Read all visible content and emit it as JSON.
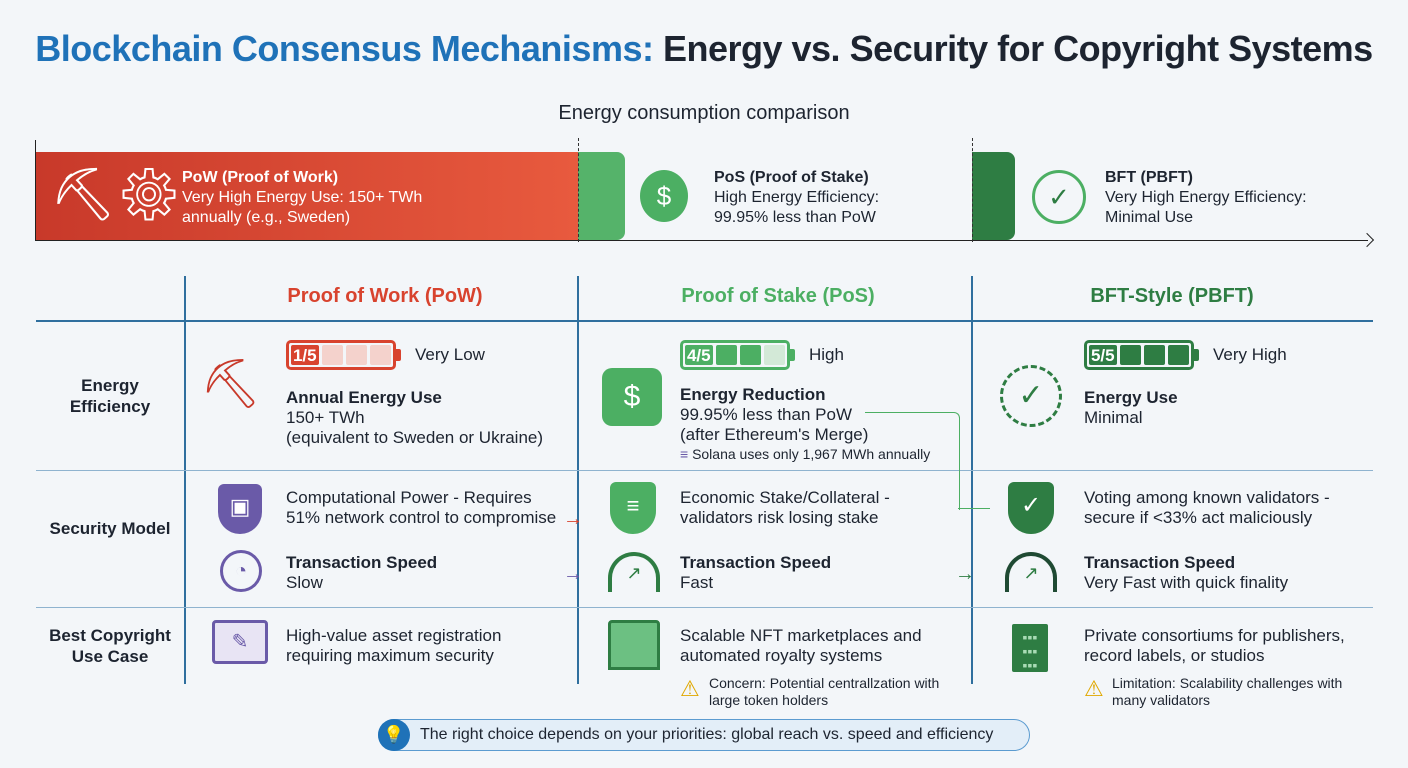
{
  "title": {
    "part1": "Blockchain Consensus Mechanisms:",
    "part2": " Energy vs. Security for Copyright Systems"
  },
  "subtitle": "Energy consumption comparison",
  "energy_bar": [
    {
      "name": "PoW (Proof of Work)",
      "line1": "Very High Energy Use: 150+ TWh",
      "line2": "annually (e.g., Sweden)",
      "color": "#d8432e"
    },
    {
      "name": "PoS (Proof of Stake)",
      "line1": "High Energy Efficiency:",
      "line2": "99.95% less than PoW",
      "color": "#4caf63"
    },
    {
      "name": "BFT (PBFT)",
      "line1": "Very High Energy Efficiency:",
      "line2": "Minimal Use",
      "color": "#2e7d43"
    }
  ],
  "columns": [
    "Proof of Work (PoW)",
    "Proof of Stake (PoS)",
    "BFT-Style (PBFT)"
  ],
  "rows": [
    "Energy Efficiency",
    "Security Model",
    "Best Copyright Use Case"
  ],
  "efficiency": [
    {
      "rating": "1/5",
      "rating_value": 1,
      "level": "Very Low",
      "heading": "Annual Energy Use",
      "l1": "150+ TWh",
      "l2": "(equivalent to Sweden or Ukraine)"
    },
    {
      "rating": "4/5",
      "rating_value": 4,
      "level": "High",
      "heading": "Energy Reduction",
      "l1": "99.95% less than PoW",
      "l2": "(after Ethereum's Merge)",
      "note": "Solana uses only 1,967 MWh annually"
    },
    {
      "rating": "5/5",
      "rating_value": 5,
      "level": "Very High",
      "heading": "Energy Use",
      "l1": "Minimal"
    }
  ],
  "security": [
    {
      "l1": "Computational Power - Requires",
      "l2": "51% network control to compromise",
      "speed_label": "Transaction Speed",
      "speed": "Slow"
    },
    {
      "l1": "Economic Stake/Collateral -",
      "l2": "validators risk losing stake",
      "speed_label": "Transaction Speed",
      "speed": "Fast"
    },
    {
      "l1": "Voting among known validators -",
      "l2": "secure if <33% act maliciously",
      "speed_label": "Transaction Speed",
      "speed": "Very Fast with quick finality"
    }
  ],
  "use_case": [
    {
      "l1": "High-value asset registration",
      "l2": "requiring maximum security"
    },
    {
      "l1": "Scalable NFT marketplaces and",
      "l2": "automated royalty systems",
      "warn1": "Concern: Potential centrallzation with",
      "warn2": "large token holders"
    },
    {
      "l1": "Private consortiums for publishers,",
      "l2": "record labels, or studios",
      "warn1": "Limitation: Scalability challenges with",
      "warn2": "many validators"
    }
  ],
  "footer": "The right choice depends on your priorities: global reach vs. speed and efficiency"
}
